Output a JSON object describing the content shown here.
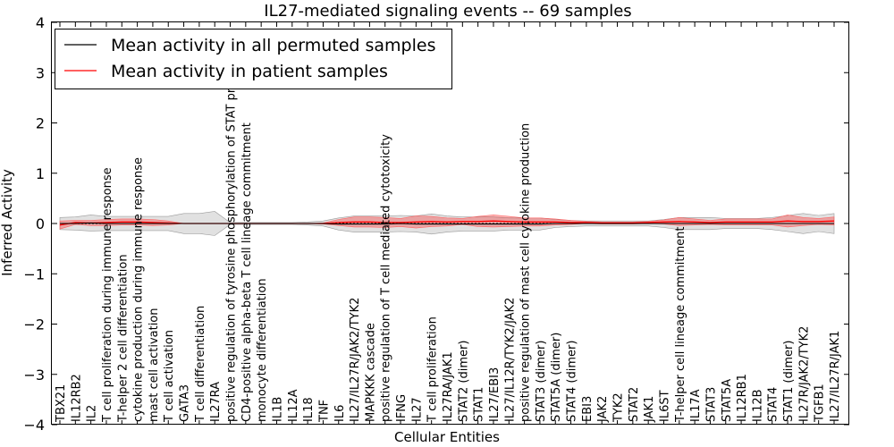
{
  "chart_data": {
    "type": "line",
    "title": "IL27-mediated signaling events -- 69 samples",
    "xlabel": "Cellular Entities",
    "ylabel": "Inferred Activity",
    "ylim": [
      -4,
      4
    ],
    "yticks": [
      4,
      3,
      2,
      1,
      0,
      -1,
      -2,
      -3,
      -4
    ],
    "ytick_labels": [
      "4",
      "3",
      "2",
      "1",
      "0",
      "−1",
      "−2",
      "−3",
      "−4"
    ],
    "legend_position": "top-left",
    "categories": [
      "TBX21",
      "IL12RB2",
      "IL2",
      "T cell proliferation during immune response",
      "T-helper 2 cell differentiation",
      "cytokine production during immune response",
      "mast cell activation",
      "T cell activation",
      "GATA3",
      "T cell differentiation",
      "IL27RA",
      "positive regulation of tyrosine phosphorylation of STAT protein",
      "CD4-positive alpha-beta T cell lineage commitment",
      "monocyte differentiation",
      "IL1B",
      "IL12A",
      "IL18",
      "TNF",
      "IL6",
      "IL27/IL27R/JAK2/TYK2",
      "MAPKKK cascade",
      "positive regulation of T cell mediated cytotoxicity",
      "IFNG",
      "IL27",
      "T cell proliferation",
      "IL27RA/JAK1",
      "STAT2 (dimer)",
      "STAT1",
      "IL27/EBI3",
      "IL27/IL12R/TYK2/JAK2",
      "positive regulation of mast cell cytokine production",
      "STAT3 (dimer)",
      "STAT5A (dimer)",
      "STAT4 (dimer)",
      "EBI3",
      "JAK2",
      "TYK2",
      "STAT2",
      "JAK1",
      "IL6ST",
      "T-helper cell lineage commitment",
      "IL17A",
      "STAT3",
      "STAT5A",
      "IL12RB1",
      "IL12B",
      "STAT4",
      "STAT1 (dimer)",
      "IL27R/JAK2/TYK2",
      "TGFB1",
      "IL27/IL27R/JAK1"
    ],
    "series": [
      {
        "name": "Mean activity in all permuted samples",
        "color": "#000000",
        "values": [
          0.0,
          0.0,
          0.01,
          0.0,
          0.0,
          0.0,
          0.0,
          0.0,
          0.0,
          0.0,
          0.0,
          0.0,
          0.0,
          0.0,
          0.0,
          0.0,
          0.0,
          0.0,
          -0.01,
          -0.01,
          -0.01,
          -0.01,
          0.0,
          -0.01,
          -0.01,
          -0.01,
          -0.01,
          -0.01,
          -0.01,
          -0.01,
          -0.01,
          -0.01,
          0.0,
          0.0,
          0.0,
          0.0,
          0.0,
          0.0,
          0.0,
          0.0,
          0.0,
          0.0,
          0.0,
          0.0,
          0.0,
          0.0,
          0.0,
          0.0,
          0.0,
          0.0,
          0.0
        ],
        "band": [
          0.12,
          0.13,
          0.16,
          0.14,
          0.14,
          0.14,
          0.14,
          0.14,
          0.2,
          0.2,
          0.24,
          0.02,
          0.02,
          0.02,
          0.02,
          0.02,
          0.03,
          0.05,
          0.12,
          0.16,
          0.16,
          0.16,
          0.16,
          0.16,
          0.2,
          0.16,
          0.14,
          0.14,
          0.14,
          0.12,
          0.12,
          0.12,
          0.08,
          0.06,
          0.05,
          0.05,
          0.05,
          0.05,
          0.05,
          0.08,
          0.12,
          0.12,
          0.12,
          0.1,
          0.1,
          0.1,
          0.12,
          0.16,
          0.2,
          0.16,
          0.2
        ]
      },
      {
        "name": "Mean activity in patient samples",
        "color": "#ff0000",
        "values": [
          -0.03,
          0.02,
          0.01,
          0.02,
          0.03,
          0.03,
          0.02,
          0.01,
          0.0,
          0.0,
          0.0,
          0.0,
          0.0,
          0.0,
          0.0,
          0.0,
          0.0,
          0.0,
          0.02,
          0.03,
          0.03,
          0.02,
          0.02,
          0.03,
          0.04,
          0.03,
          0.04,
          0.04,
          0.05,
          0.04,
          0.03,
          0.03,
          0.03,
          0.02,
          0.02,
          0.01,
          0.01,
          0.01,
          0.02,
          0.03,
          0.04,
          0.03,
          0.02,
          0.03,
          0.03,
          0.03,
          0.03,
          0.05,
          0.04,
          0.04,
          0.05
        ],
        "band": [
          0.08,
          0.04,
          0.05,
          0.06,
          0.06,
          0.06,
          0.06,
          0.04,
          0.0,
          0.0,
          0.0,
          0.0,
          0.0,
          0.0,
          0.0,
          0.0,
          0.0,
          0.01,
          0.06,
          0.1,
          0.1,
          0.1,
          0.08,
          0.12,
          0.1,
          0.08,
          0.06,
          0.1,
          0.12,
          0.1,
          0.08,
          0.08,
          0.06,
          0.04,
          0.02,
          0.02,
          0.02,
          0.02,
          0.02,
          0.04,
          0.08,
          0.06,
          0.04,
          0.06,
          0.06,
          0.06,
          0.06,
          0.12,
          0.08,
          0.06,
          0.08
        ]
      }
    ],
    "reference_line": 0
  }
}
